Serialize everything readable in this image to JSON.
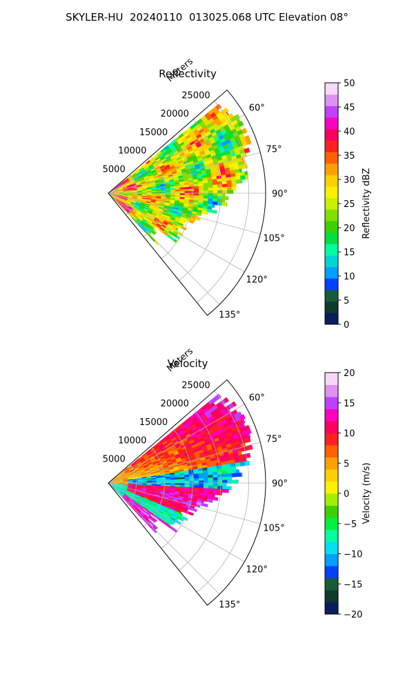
{
  "figure": {
    "title": "SKYLER-HU  20240110  013025.068 UTC Elevation 08°"
  },
  "chart_data": [
    {
      "type": "heatmap",
      "projection": "polar-sector",
      "title": "Reflectivity",
      "radial_label": "Meters",
      "radial_ticks": [
        5000,
        10000,
        15000,
        20000,
        25000
      ],
      "radial_max": 28000,
      "angle_ticks": [
        "60°",
        "75°",
        "90°",
        "105°",
        "120°",
        "135°"
      ],
      "angle_range_deg": [
        49,
        141
      ],
      "data_angle_range_deg": [
        51,
        136
      ],
      "data_max_range_m": 27000,
      "grid": true,
      "colorbar": {
        "label": "Reflectivity dBZ",
        "min": 0,
        "max": 50,
        "ticks": [
          0,
          5,
          10,
          15,
          20,
          25,
          30,
          35,
          40,
          45,
          50
        ],
        "colors": [
          "#0b1d5c",
          "#0d3b2e",
          "#1a5a3c",
          "#0040ff",
          "#00a0ff",
          "#00d4d4",
          "#00ffa0",
          "#00e040",
          "#40d000",
          "#80e000",
          "#c8f000",
          "#fff000",
          "#ffd000",
          "#ffa000",
          "#ff6000",
          "#ff2020",
          "#ff0060",
          "#ff00c0",
          "#c040ff",
          "#e090f0",
          "#f8d8f8"
        ]
      }
    },
    {
      "type": "heatmap",
      "projection": "polar-sector",
      "title": "Velocity",
      "radial_label": "Meters",
      "radial_ticks": [
        5000,
        10000,
        15000,
        20000,
        25000
      ],
      "radial_max": 28000,
      "angle_ticks": [
        "60°",
        "75°",
        "90°",
        "105°",
        "120°",
        "135°"
      ],
      "angle_range_deg": [
        49,
        141
      ],
      "data_angle_range_deg": [
        51,
        136
      ],
      "data_max_range_m": 27000,
      "grid": true,
      "colorbar": {
        "label": "Velocity (m/s)",
        "min": -20,
        "max": 20,
        "ticks": [
          -20,
          -15,
          -10,
          -5,
          0,
          5,
          10,
          15,
          20
        ],
        "colors": [
          "#0b1d5c",
          "#0d3b2e",
          "#1a5a3c",
          "#0040ff",
          "#00a0ff",
          "#00e0f0",
          "#00ffa0",
          "#00f040",
          "#40d000",
          "#a0f000",
          "#fff000",
          "#ffd000",
          "#ffa000",
          "#ff6000",
          "#ff2020",
          "#ff0060",
          "#ff00c0",
          "#c040ff",
          "#e090f0",
          "#f8d8f8"
        ]
      }
    }
  ]
}
